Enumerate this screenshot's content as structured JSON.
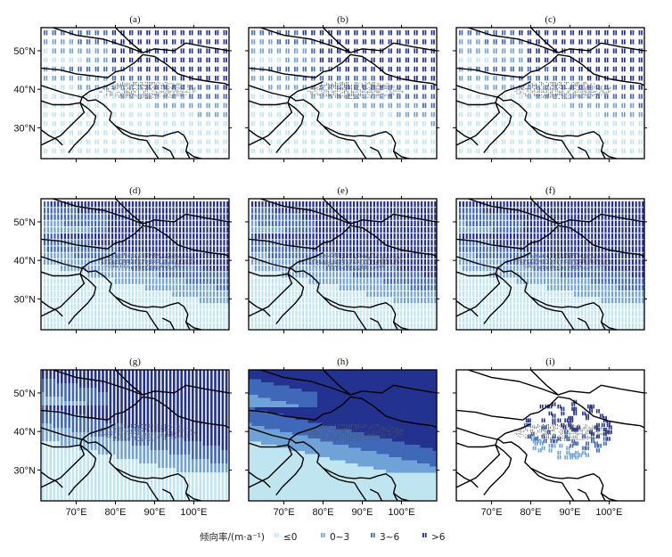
{
  "figure": {
    "legend": {
      "title": "倾向率/(m·a⁻¹)",
      "entries": [
        {
          "label": "≤0",
          "color": "#bfe6f0"
        },
        {
          "label": "0~3",
          "color": "#6fa3d8"
        },
        {
          "label": "3~6",
          "color": "#3f69b8"
        },
        {
          "label": ">6",
          "color": "#23328f"
        }
      ]
    }
  },
  "chart_data": [
    {
      "type": "heatmap",
      "panel": "(a)",
      "style": "hatch-sparse",
      "x_ticks": [
        "70°E",
        "80°E",
        "90°E",
        "100°E"
      ],
      "y_ticks": [
        "50°N",
        "40°N",
        "30°N"
      ],
      "xlim": [
        61,
        109
      ],
      "ylim": [
        22,
        56
      ],
      "classes": [
        "≤0",
        "0~3",
        "3~6",
        ">6"
      ]
    },
    {
      "type": "heatmap",
      "panel": "(b)",
      "style": "hatch-sparse",
      "x_ticks": [
        "70°E",
        "80°E",
        "90°E",
        "100°E"
      ],
      "y_ticks": [
        "50°N",
        "40°N",
        "30°N"
      ],
      "xlim": [
        61,
        109
      ],
      "ylim": [
        22,
        56
      ],
      "classes": [
        "≤0",
        "0~3",
        "3~6",
        ">6"
      ]
    },
    {
      "type": "heatmap",
      "panel": "(c)",
      "style": "hatch-sparse",
      "x_ticks": [
        "70°E",
        "80°E",
        "90°E",
        "100°E"
      ],
      "y_ticks": [
        "50°N",
        "40°N",
        "30°N"
      ],
      "xlim": [
        61,
        109
      ],
      "ylim": [
        22,
        56
      ],
      "classes": [
        "≤0",
        "0~3",
        "3~6",
        ">6"
      ]
    },
    {
      "type": "heatmap",
      "panel": "(d)",
      "style": "hatch-dense",
      "x_ticks": [
        "70°E",
        "80°E",
        "90°E",
        "100°E"
      ],
      "y_ticks": [
        "50°N",
        "40°N",
        "30°N"
      ],
      "xlim": [
        61,
        109
      ],
      "ylim": [
        22,
        56
      ],
      "classes": [
        "≤0",
        "0~3",
        "3~6",
        ">6"
      ]
    },
    {
      "type": "heatmap",
      "panel": "(e)",
      "style": "hatch-dense",
      "x_ticks": [
        "70°E",
        "80°E",
        "90°E",
        "100°E"
      ],
      "y_ticks": [
        "50°N",
        "40°N",
        "30°N"
      ],
      "xlim": [
        61,
        109
      ],
      "ylim": [
        22,
        56
      ],
      "classes": [
        "≤0",
        "0~3",
        "3~6",
        ">6"
      ]
    },
    {
      "type": "heatmap",
      "panel": "(f)",
      "style": "hatch-dense",
      "x_ticks": [
        "70°E",
        "80°E",
        "90°E",
        "100°E"
      ],
      "y_ticks": [
        "50°N",
        "40°N",
        "30°N"
      ],
      "xlim": [
        61,
        109
      ],
      "ylim": [
        22,
        56
      ],
      "classes": [
        "≤0",
        "0~3",
        "3~6",
        ">6"
      ]
    },
    {
      "type": "heatmap",
      "panel": "(g)",
      "style": "stripes",
      "x_ticks": [
        "70°E",
        "80°E",
        "90°E",
        "100°E"
      ],
      "y_ticks": [
        "50°N",
        "40°N",
        "30°N"
      ],
      "xlim": [
        61,
        109
      ],
      "ylim": [
        22,
        56
      ],
      "classes": [
        "≤0",
        "0~3",
        "3~6",
        ">6"
      ]
    },
    {
      "type": "heatmap",
      "panel": "(h)",
      "style": "solid",
      "x_ticks": [
        "70°E",
        "80°E",
        "90°E",
        "100°E"
      ],
      "y_ticks": [
        "50°N",
        "40°N",
        "30°N"
      ],
      "xlim": [
        61,
        109
      ],
      "ylim": [
        22,
        56
      ],
      "classes": [
        "≤0",
        "0~3",
        "3~6",
        ">6"
      ]
    },
    {
      "type": "heatmap",
      "panel": "(i)",
      "style": "sparse-points",
      "x_ticks": [
        "70°E",
        "80°E",
        "90°E",
        "100°E"
      ],
      "y_ticks": [
        "50°N",
        "40°N",
        "30°N"
      ],
      "xlim": [
        61,
        109
      ],
      "ylim": [
        22,
        56
      ],
      "classes": [
        "≤0",
        "0~3",
        "3~6",
        ">6"
      ]
    }
  ]
}
